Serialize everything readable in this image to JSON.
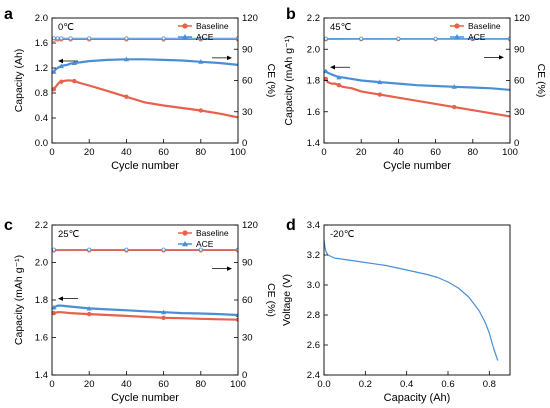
{
  "figure": {
    "panels": [
      "a",
      "b",
      "c",
      "d"
    ]
  },
  "chart_data": [
    {
      "type": "line",
      "panel_label": "a",
      "annotation": "0℃",
      "xlabel": "Cycle number",
      "ylabel": "Capacity (Ah)",
      "y2label": "CE (%)",
      "xlim": [
        0,
        100
      ],
      "ylim": [
        0.0,
        2.0
      ],
      "y2lim": [
        0,
        120
      ],
      "xticks": [
        0,
        20,
        40,
        60,
        80,
        100
      ],
      "yticks": [
        0.0,
        0.4,
        0.8,
        1.2,
        1.6,
        2.0
      ],
      "y2ticks": [
        0,
        30,
        60,
        90,
        120
      ],
      "ytick_labels": [
        "0.0",
        "0.4",
        "0.8",
        "1.2",
        "1.6",
        "2.0"
      ],
      "legend": {
        "position": "top-right",
        "entries": [
          "Baseline",
          "ACE"
        ]
      },
      "series": [
        {
          "name": "Baseline",
          "axis": "left",
          "color": "#e8614d",
          "x": [
            1,
            2,
            3,
            4,
            5,
            6,
            8,
            10,
            12,
            15,
            20,
            30,
            40,
            50,
            60,
            70,
            80,
            90,
            100
          ],
          "y": [
            0.86,
            0.9,
            0.94,
            0.97,
            0.98,
            0.99,
            1.0,
            1.0,
            0.99,
            0.96,
            0.92,
            0.83,
            0.74,
            0.65,
            0.6,
            0.56,
            0.52,
            0.47,
            0.41
          ]
        },
        {
          "name": "ACE",
          "axis": "left",
          "color": "#4a8fd6",
          "x": [
            1,
            2,
            3,
            4,
            5,
            6,
            8,
            10,
            12,
            15,
            20,
            30,
            40,
            50,
            60,
            70,
            80,
            90,
            100
          ],
          "y": [
            1.14,
            1.18,
            1.2,
            1.22,
            1.23,
            1.24,
            1.25,
            1.27,
            1.28,
            1.29,
            1.31,
            1.33,
            1.34,
            1.34,
            1.33,
            1.32,
            1.3,
            1.28,
            1.25
          ]
        },
        {
          "name": "Baseline CE",
          "axis": "right",
          "color": "#e8614d",
          "x": [
            1,
            3,
            5,
            10,
            20,
            40,
            60,
            80,
            100
          ],
          "y": [
            99.0,
            99.3,
            99.4,
            99.4,
            99.4,
            99.4,
            99.4,
            99.4,
            99.4
          ]
        },
        {
          "name": "ACE CE",
          "axis": "right",
          "color": "#4a8fd6",
          "x": [
            1,
            3,
            5,
            10,
            20,
            40,
            60,
            80,
            100
          ],
          "y": [
            100.6,
            100.5,
            100.5,
            100.5,
            100.5,
            100.5,
            100.5,
            100.5,
            100.5
          ]
        }
      ]
    },
    {
      "type": "line",
      "panel_label": "b",
      "annotation": "45℃",
      "xlabel": "Cycle number",
      "ylabel": "Capacity (mAh g⁻¹)",
      "y2label": "CE (%)",
      "xlim": [
        0,
        100
      ],
      "ylim": [
        1.4,
        2.2
      ],
      "y2lim": [
        0,
        120
      ],
      "xticks": [
        0,
        20,
        40,
        60,
        80,
        100
      ],
      "yticks": [
        1.4,
        1.6,
        1.8,
        2.0,
        2.2
      ],
      "y2ticks": [
        0,
        30,
        60,
        90,
        120
      ],
      "ytick_labels": [
        "1.4",
        "1.6",
        "1.8",
        "2.0",
        "2.2"
      ],
      "legend": {
        "position": "top-right",
        "entries": [
          "Baseline",
          "ACE"
        ]
      },
      "series": [
        {
          "name": "Baseline",
          "axis": "left",
          "color": "#e8614d",
          "x": [
            1,
            2,
            4,
            6,
            8,
            10,
            15,
            20,
            30,
            40,
            50,
            60,
            70,
            80,
            90,
            100
          ],
          "y": [
            1.81,
            1.79,
            1.78,
            1.78,
            1.77,
            1.76,
            1.75,
            1.73,
            1.71,
            1.69,
            1.67,
            1.65,
            1.63,
            1.61,
            1.59,
            1.57
          ]
        },
        {
          "name": "ACE",
          "axis": "left",
          "color": "#4a8fd6",
          "x": [
            1,
            2,
            4,
            6,
            8,
            10,
            15,
            20,
            30,
            40,
            50,
            60,
            70,
            80,
            90,
            100
          ],
          "y": [
            1.86,
            1.85,
            1.84,
            1.83,
            1.82,
            1.82,
            1.81,
            1.8,
            1.79,
            1.78,
            1.77,
            1.765,
            1.76,
            1.755,
            1.75,
            1.74
          ]
        },
        {
          "name": "Baseline CE",
          "axis": "right",
          "color": "#e8614d",
          "x": [
            1,
            20,
            40,
            60,
            80,
            100
          ],
          "y": [
            99.5,
            99.6,
            99.6,
            99.6,
            99.6,
            99.6
          ]
        },
        {
          "name": "ACE CE",
          "axis": "right",
          "color": "#4a8fd6",
          "x": [
            1,
            20,
            40,
            60,
            80,
            100
          ],
          "y": [
            100.2,
            100.2,
            100.2,
            100.2,
            100.2,
            100.2
          ]
        }
      ]
    },
    {
      "type": "line",
      "panel_label": "c",
      "annotation": "25℃",
      "xlabel": "Cycle number",
      "ylabel": "Capacity (mAh g⁻¹)",
      "y2label": "CE (%)",
      "xlim": [
        0,
        100
      ],
      "ylim": [
        1.4,
        2.2
      ],
      "y2lim": [
        0,
        120
      ],
      "xticks": [
        0,
        20,
        40,
        60,
        80,
        100
      ],
      "yticks": [
        1.4,
        1.6,
        1.8,
        2.0,
        2.2
      ],
      "y2ticks": [
        0,
        30,
        60,
        90,
        120
      ],
      "ytick_labels": [
        "1.4",
        "1.6",
        "1.8",
        "2.0",
        "2.2"
      ],
      "legend": {
        "position": "top-right",
        "entries": [
          "Baseline",
          "ACE"
        ]
      },
      "series": [
        {
          "name": "Baseline",
          "axis": "left",
          "color": "#e8614d",
          "x": [
            1,
            3,
            5,
            10,
            20,
            30,
            40,
            50,
            60,
            70,
            80,
            90,
            100
          ],
          "y": [
            1.73,
            1.735,
            1.735,
            1.73,
            1.725,
            1.72,
            1.715,
            1.71,
            1.705,
            1.703,
            1.7,
            1.697,
            1.695
          ]
        },
        {
          "name": "ACE",
          "axis": "left",
          "color": "#4a8fd6",
          "x": [
            1,
            3,
            5,
            10,
            20,
            30,
            40,
            50,
            60,
            70,
            80,
            90,
            100
          ],
          "y": [
            1.76,
            1.77,
            1.77,
            1.765,
            1.755,
            1.75,
            1.745,
            1.74,
            1.735,
            1.73,
            1.728,
            1.725,
            1.72
          ]
        },
        {
          "name": "Baseline CE",
          "axis": "right",
          "color": "#e8614d",
          "x": [
            1,
            20,
            40,
            60,
            80,
            100
          ],
          "y": [
            99.5,
            99.6,
            99.6,
            99.6,
            99.6,
            99.6
          ]
        },
        {
          "name": "ACE CE",
          "axis": "right",
          "color": "#4a8fd6",
          "x": [
            1,
            20,
            40,
            60,
            80,
            100
          ],
          "y": [
            100.3,
            100.3,
            100.3,
            100.3,
            100.3,
            100.3
          ]
        }
      ]
    },
    {
      "type": "line",
      "panel_label": "d",
      "annotation": "-20℃",
      "xlabel": "Capacity (Ah)",
      "ylabel": "Voltage (V)",
      "xlim": [
        0.0,
        0.9
      ],
      "ylim": [
        2.4,
        3.4
      ],
      "xticks": [
        0.0,
        0.2,
        0.4,
        0.6,
        0.8
      ],
      "yticks": [
        2.4,
        2.6,
        2.8,
        3.0,
        3.2,
        3.4
      ],
      "xtick_labels": [
        "0.0",
        "0.2",
        "0.4",
        "0.6",
        "0.8"
      ],
      "ytick_labels": [
        "2.4",
        "2.6",
        "2.8",
        "3.0",
        "3.2",
        "3.4"
      ],
      "series": [
        {
          "name": "",
          "axis": "left",
          "color": "#4a8fd6",
          "x": [
            0.0,
            0.005,
            0.01,
            0.02,
            0.05,
            0.1,
            0.2,
            0.3,
            0.4,
            0.5,
            0.55,
            0.6,
            0.65,
            0.7,
            0.75,
            0.78,
            0.8,
            0.82,
            0.84
          ],
          "y": [
            3.3,
            3.25,
            3.22,
            3.2,
            3.18,
            3.17,
            3.15,
            3.13,
            3.1,
            3.07,
            3.05,
            3.02,
            2.98,
            2.92,
            2.83,
            2.75,
            2.68,
            2.58,
            2.5
          ]
        }
      ]
    }
  ]
}
